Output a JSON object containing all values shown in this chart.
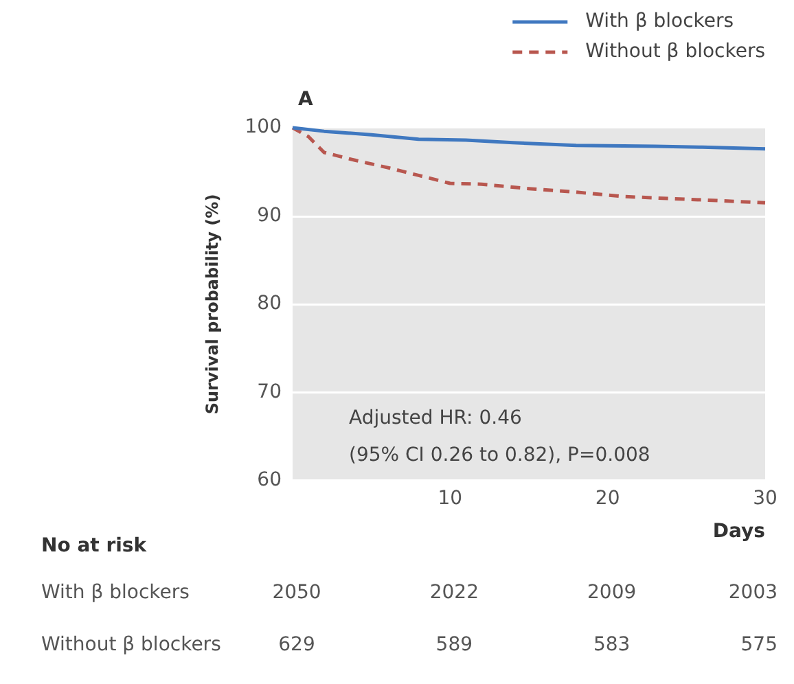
{
  "chart_data": {
    "type": "line",
    "xlabel": "Days",
    "ylabel": "Survival probability (%)",
    "xlim": [
      0,
      30
    ],
    "xticks": [
      10,
      20,
      30
    ],
    "ylim": [
      60,
      100
    ],
    "yticks": [
      60,
      70,
      80,
      90,
      100
    ],
    "grid": "y",
    "legend": "top right",
    "annotations": [
      "A",
      "Adjusted HR: 0.46\n(95% CI 0.26 to 0.82), P=0.008",
      "No at risk",
      "With β blockers\t2050\t2022\t2009\t2003",
      "Without β blockers\t629\t589\t583\t575"
    ],
    "series": [
      {
        "name": "With β blockers",
        "color": "#3f78c0",
        "line_style": "solid",
        "x": [
          0,
          2,
          5,
          8,
          11,
          14,
          18,
          23,
          26,
          30
        ],
        "values": [
          100,
          99.6,
          99.2,
          98.7,
          98.6,
          98.3,
          98.0,
          97.9,
          97.8,
          97.6
        ]
      },
      {
        "name": "Without β blockers",
        "color": "#b8574f",
        "line_style": "dashed",
        "x": [
          0,
          1,
          2,
          4,
          6,
          8,
          10,
          12,
          15,
          18,
          21,
          25,
          30
        ],
        "values": [
          100,
          99,
          97.2,
          96.3,
          95.5,
          94.6,
          93.7,
          93.6,
          93.1,
          92.7,
          92.2,
          91.9,
          91.5
        ]
      }
    ]
  }
}
